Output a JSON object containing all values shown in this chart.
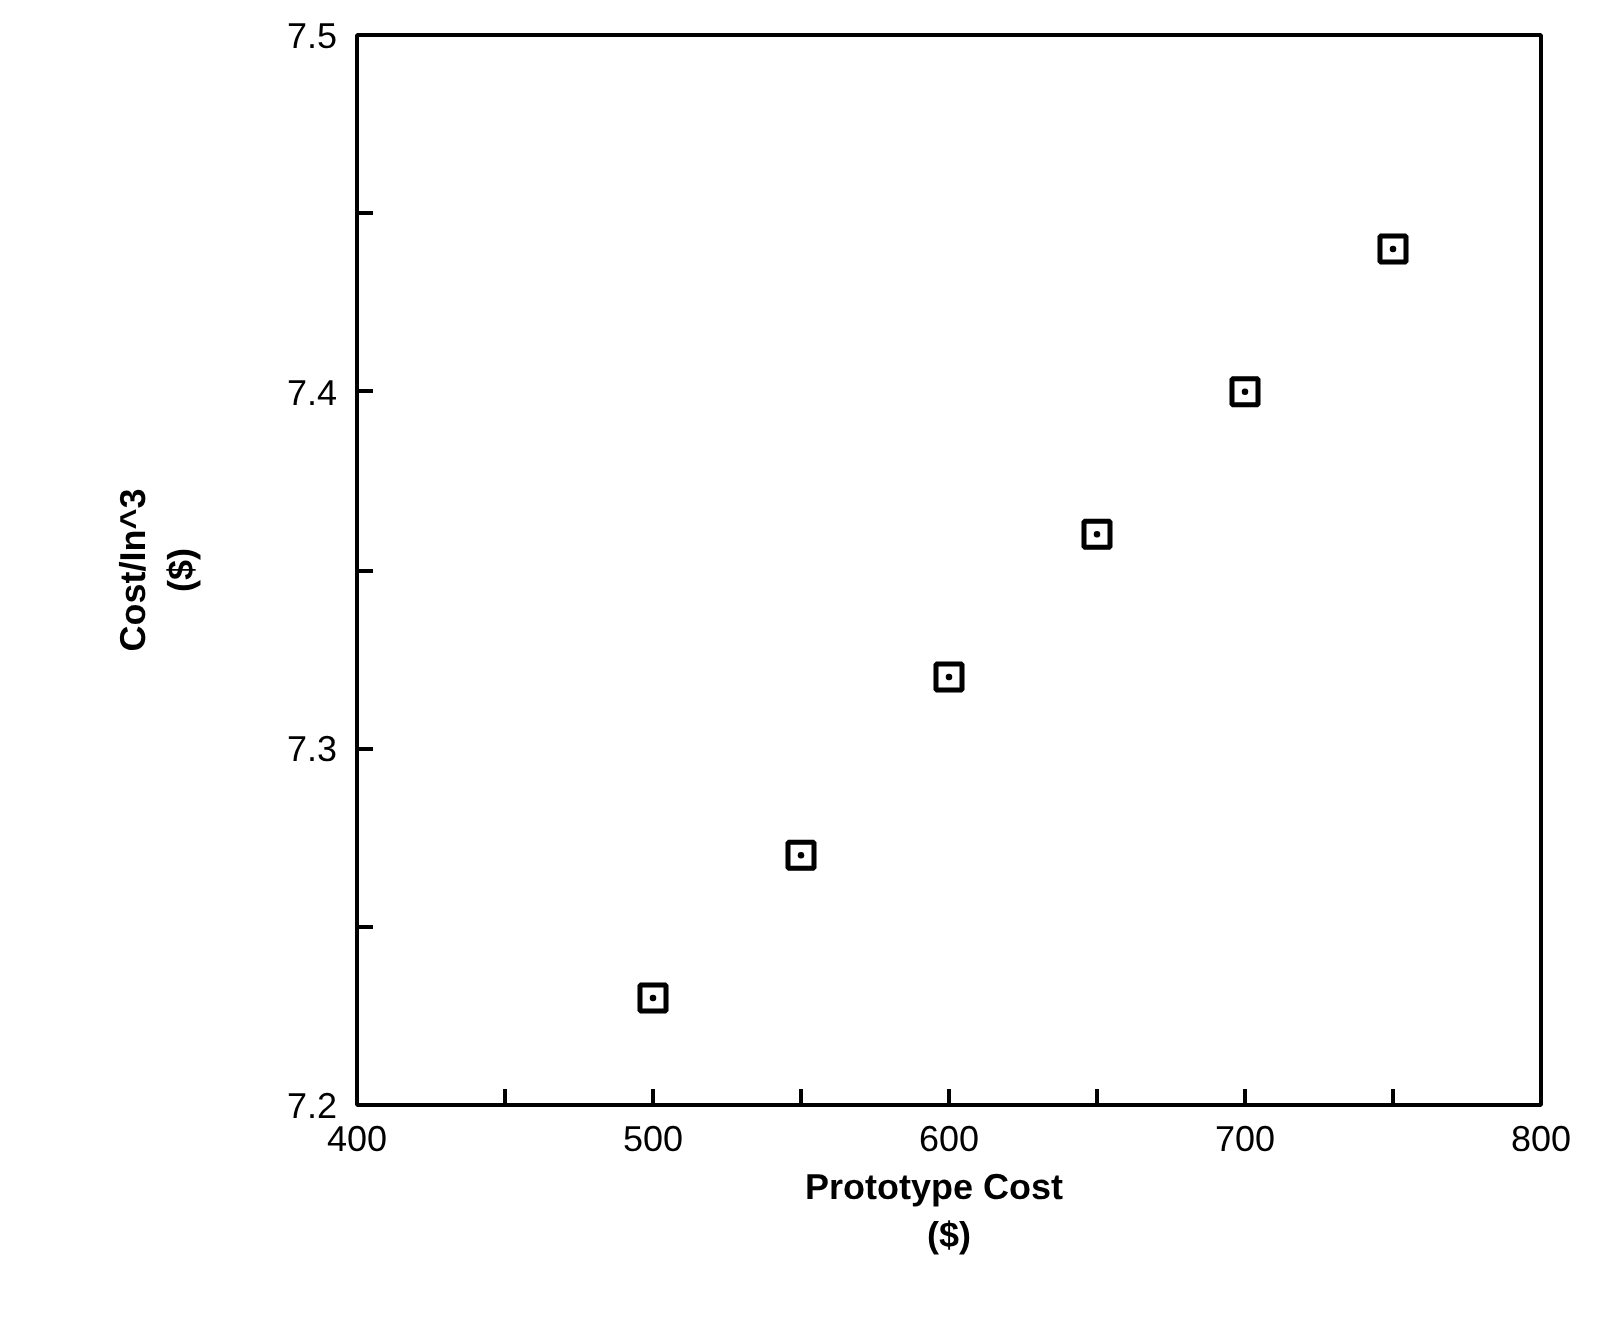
{
  "chart_data": {
    "type": "scatter",
    "xlabel": "Prototype    Cost\n($)",
    "ylabel": "Cost/In^3\n($)",
    "x": [
      500,
      550,
      600,
      650,
      700,
      750
    ],
    "values": [
      7.23,
      7.27,
      7.32,
      7.36,
      7.4,
      7.44
    ],
    "color": "#000000",
    "marker": "square",
    "grid": false,
    "xlim": [
      400,
      800
    ],
    "ylim": [
      7.2,
      7.5
    ],
    "xticks": [
      400,
      {
        "value": 450,
        "label": null
      },
      500,
      {
        "value": 550,
        "label": null
      },
      600,
      {
        "value": 650,
        "label": null
      },
      700,
      {
        "value": 750,
        "label": null
      },
      800
    ],
    "yticks": [
      7.2,
      {
        "value": 7.25,
        "label": null
      },
      7.3,
      {
        "value": 7.35,
        "label": null
      },
      7.4,
      {
        "value": 7.45,
        "label": null
      },
      7.5
    ]
  }
}
